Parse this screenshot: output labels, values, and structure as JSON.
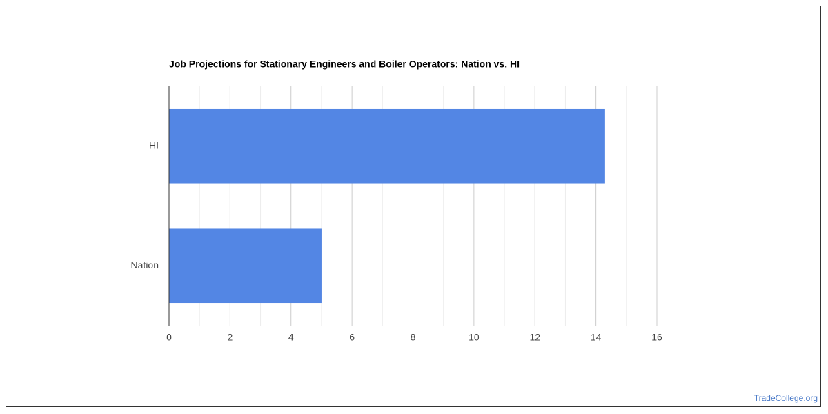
{
  "chart_data": {
    "type": "hbar",
    "title": "Job Projections for Stationary Engineers and Boiler Operators: Nation vs. HI",
    "categories": [
      "HI",
      "Nation"
    ],
    "values": [
      14.3,
      5.0
    ],
    "color": "#5386e4",
    "xlim": [
      0,
      16
    ],
    "xticks": [
      0,
      2,
      4,
      6,
      8,
      10,
      12,
      14,
      16
    ],
    "grid": true,
    "credit": "TradeCollege.org"
  }
}
